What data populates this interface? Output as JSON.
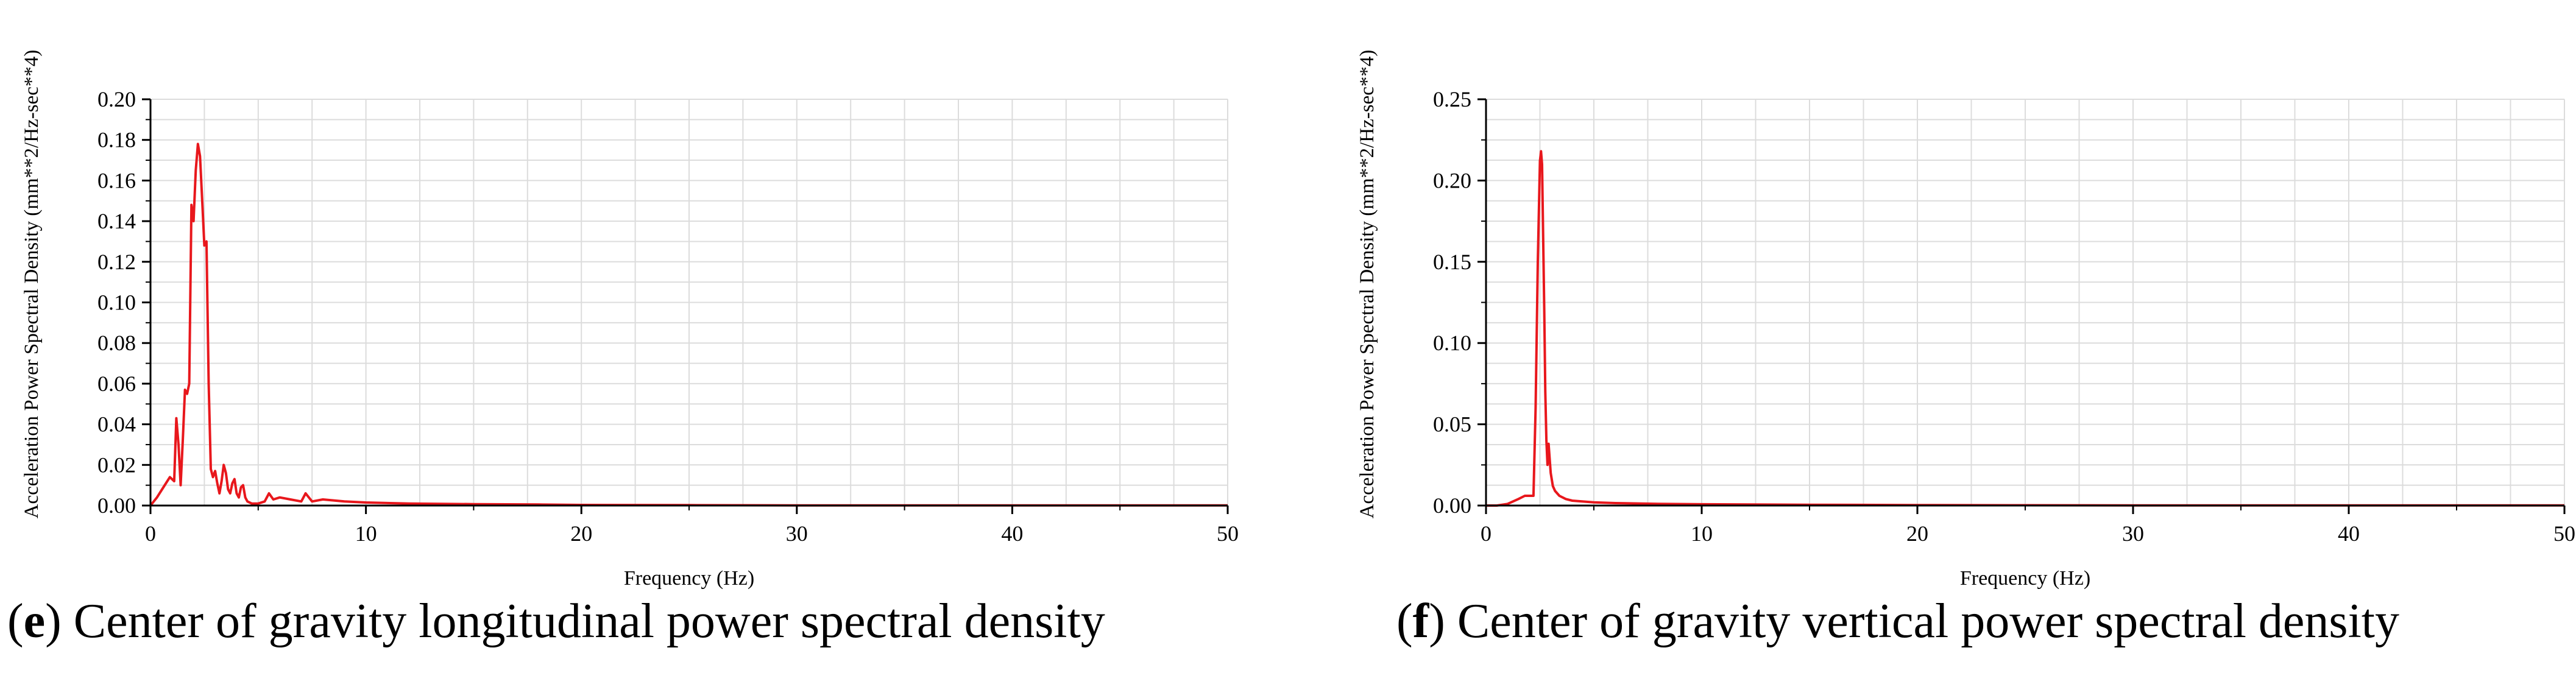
{
  "colors": {
    "series": "#e8171c",
    "grid": "#dcdcdc",
    "axis": "#000000",
    "background": "#ffffff"
  },
  "chart_data": [
    {
      "type": "line",
      "panel_letter": "e",
      "caption": "Center of gravity longitudinal power spectral density",
      "xlabel": "Frequency (Hz)",
      "ylabel": "Acceleration Power Spectral Density (mm**2/Hz-sec**4)",
      "xlim": [
        0,
        50
      ],
      "ylim": [
        0,
        0.2
      ],
      "xticks": [
        0,
        10,
        20,
        30,
        40,
        50
      ],
      "xtick_labels": [
        "0",
        "10",
        "20",
        "30",
        "40",
        "50"
      ],
      "yticks": [
        0,
        0.02,
        0.04,
        0.06,
        0.08,
        0.1,
        0.12,
        0.14,
        0.16,
        0.18,
        0.2
      ],
      "ytick_labels": [
        "0.00",
        "0.02",
        "0.04",
        "0.06",
        "0.08",
        "0.10",
        "0.12",
        "0.14",
        "0.16",
        "0.18",
        "0.20"
      ],
      "grid": true,
      "series": [
        {
          "name": "PSD",
          "x": [
            0,
            0.3,
            0.6,
            0.9,
            1.1,
            1.2,
            1.3,
            1.4,
            1.5,
            1.6,
            1.7,
            1.8,
            1.9,
            2.0,
            2.1,
            2.2,
            2.3,
            2.4,
            2.5,
            2.6,
            2.7,
            2.8,
            2.9,
            3.0,
            3.1,
            3.2,
            3.3,
            3.4,
            3.5,
            3.6,
            3.7,
            3.8,
            3.9,
            4.0,
            4.1,
            4.2,
            4.3,
            4.4,
            4.5,
            4.7,
            5.0,
            5.3,
            5.5,
            5.7,
            6.0,
            6.5,
            7.0,
            7.2,
            7.5,
            8.0,
            9.0,
            10,
            12,
            15,
            18,
            20,
            25,
            30,
            40,
            50
          ],
          "y": [
            0,
            0.004,
            0.009,
            0.014,
            0.012,
            0.043,
            0.03,
            0.01,
            0.032,
            0.057,
            0.055,
            0.06,
            0.148,
            0.14,
            0.165,
            0.178,
            0.172,
            0.15,
            0.128,
            0.13,
            0.06,
            0.018,
            0.014,
            0.017,
            0.011,
            0.006,
            0.012,
            0.02,
            0.016,
            0.008,
            0.006,
            0.011,
            0.013,
            0.006,
            0.004,
            0.009,
            0.01,
            0.004,
            0.002,
            0.001,
            0.001,
            0.002,
            0.006,
            0.003,
            0.004,
            0.003,
            0.002,
            0.006,
            0.002,
            0.003,
            0.002,
            0.0015,
            0.001,
            0.0007,
            0.0005,
            0.0003,
            0.0002,
            0.0001,
            0.0001,
            0.0001
          ]
        }
      ]
    },
    {
      "type": "line",
      "panel_letter": "f",
      "caption": "Center of gravity vertical power spectral density",
      "xlabel": "Frequency (Hz)",
      "ylabel": "Acceleration Power Spectral Density (mm**2/Hz-sec**4)",
      "xlim": [
        0,
        50
      ],
      "ylim": [
        0,
        0.25
      ],
      "xticks": [
        0,
        10,
        20,
        30,
        40,
        50
      ],
      "xtick_labels": [
        "0",
        "10",
        "20",
        "30",
        "40",
        "50"
      ],
      "yticks": [
        0,
        0.05,
        0.1,
        0.15,
        0.2,
        0.25
      ],
      "ytick_labels": [
        "0.00",
        "0.05",
        "0.10",
        "0.15",
        "0.20",
        "0.25"
      ],
      "grid": true,
      "series": [
        {
          "name": "PSD",
          "x": [
            0,
            0.5,
            1.0,
            1.5,
            1.8,
            2.0,
            2.2,
            2.3,
            2.4,
            2.5,
            2.55,
            2.6,
            2.65,
            2.7,
            2.75,
            2.8,
            2.85,
            2.9,
            3.0,
            3.1,
            3.2,
            3.4,
            3.7,
            4.0,
            5.0,
            6.0,
            8.0,
            10,
            15,
            20,
            25,
            30,
            40,
            50
          ],
          "y": [
            0,
            0,
            0.001,
            0.004,
            0.006,
            0.006,
            0.006,
            0.06,
            0.15,
            0.212,
            0.218,
            0.21,
            0.165,
            0.12,
            0.07,
            0.04,
            0.025,
            0.038,
            0.02,
            0.012,
            0.009,
            0.006,
            0.004,
            0.003,
            0.002,
            0.0015,
            0.001,
            0.0008,
            0.0005,
            0.0003,
            0.0002,
            0.0001,
            0.0001,
            0.0001
          ]
        }
      ]
    }
  ]
}
